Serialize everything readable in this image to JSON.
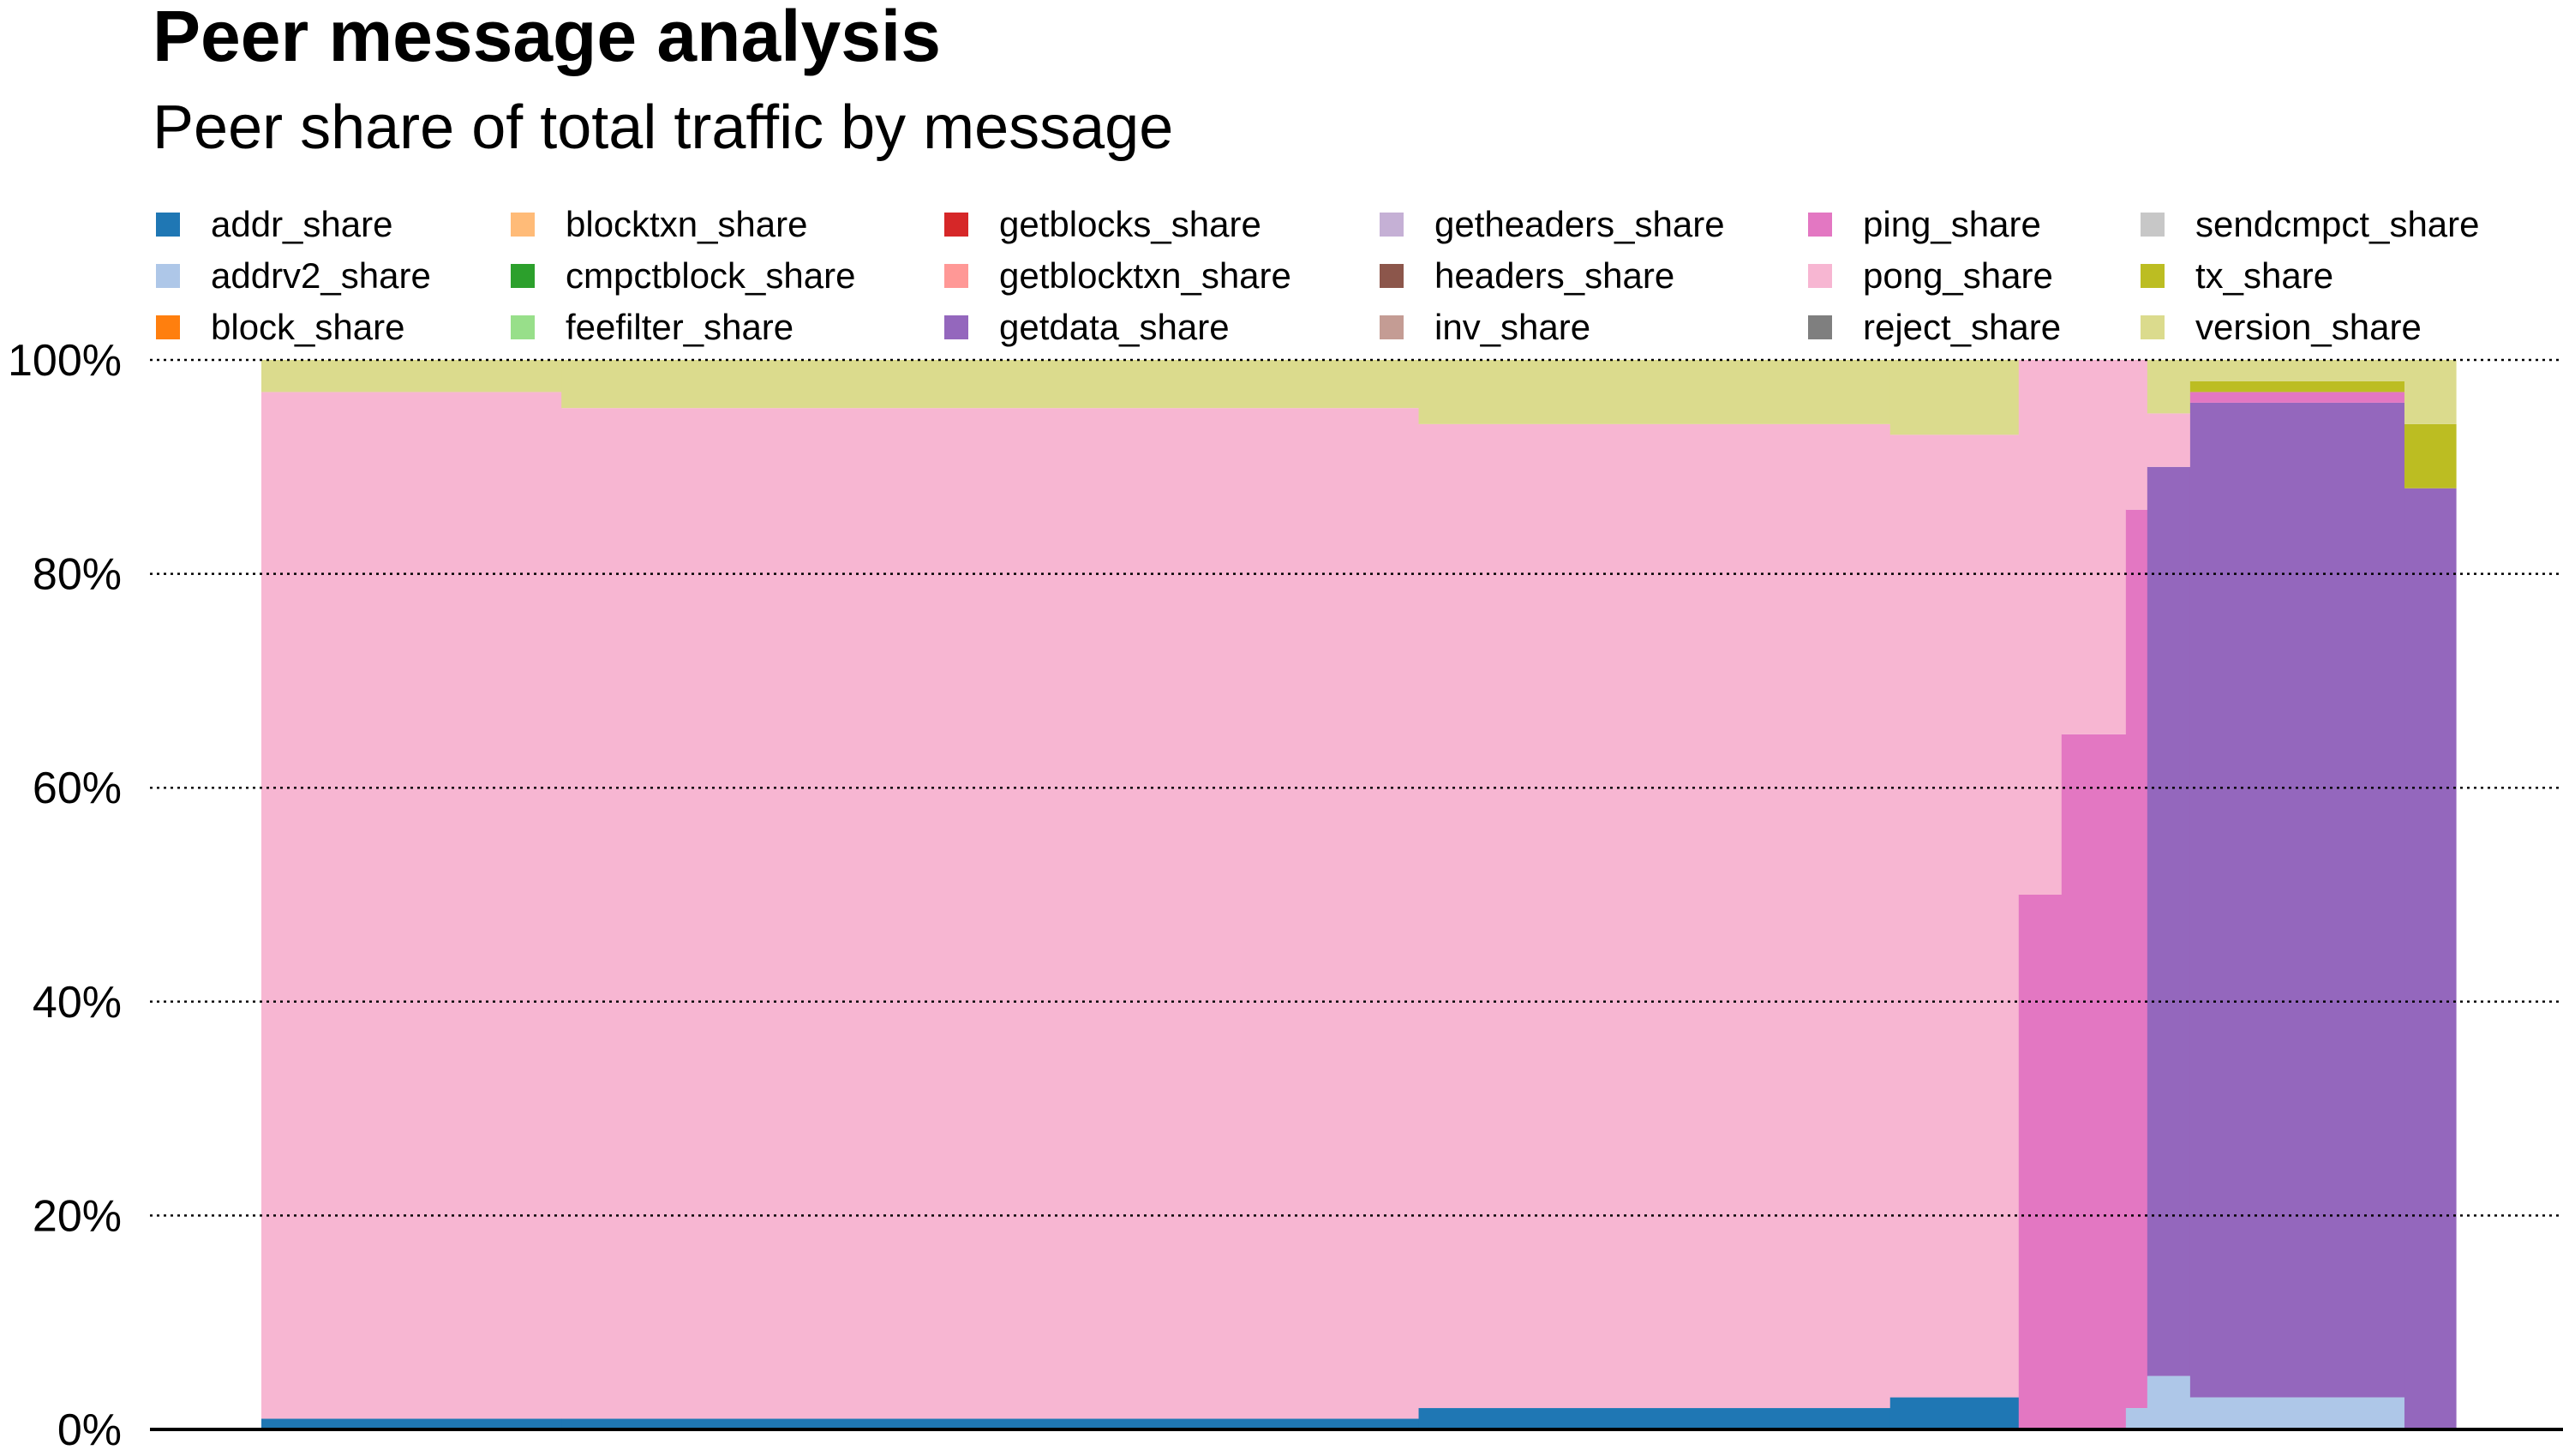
{
  "title": "Peer message analysis",
  "subtitle": "Peer share of total traffic by message",
  "chart_data": {
    "type": "area",
    "stacked": true,
    "normalized": true,
    "title": "Peer message analysis",
    "subtitle": "Peer share of total traffic by message",
    "xlabel": "",
    "ylabel": "",
    "ylim": [
      0,
      100
    ],
    "yticks": [
      0,
      20,
      40,
      60,
      80,
      100
    ],
    "ytick_labels": [
      "0%",
      "20%",
      "40%",
      "60%",
      "80%",
      "100%"
    ],
    "grid": "horizontal-dotted",
    "legend_position": "top",
    "legend": [
      {
        "name": "addr_share",
        "color": "#1f77b4"
      },
      {
        "name": "addrv2_share",
        "color": "#aec7e8"
      },
      {
        "name": "block_share",
        "color": "#ff7f0e"
      },
      {
        "name": "blocktxn_share",
        "color": "#ffbb78"
      },
      {
        "name": "cmpctblock_share",
        "color": "#2ca02c"
      },
      {
        "name": "feefilter_share",
        "color": "#98df8a"
      },
      {
        "name": "getblocks_share",
        "color": "#d62728"
      },
      {
        "name": "getblocktxn_share",
        "color": "#ff9896"
      },
      {
        "name": "getdata_share",
        "color": "#9467bd"
      },
      {
        "name": "getheaders_share",
        "color": "#c5b0d5"
      },
      {
        "name": "headers_share",
        "color": "#8c564b"
      },
      {
        "name": "inv_share",
        "color": "#c49c94"
      },
      {
        "name": "ping_share",
        "color": "#e377c2"
      },
      {
        "name": "pong_share",
        "color": "#f7b6d2"
      },
      {
        "name": "reject_share",
        "color": "#7f7f7f"
      },
      {
        "name": "sendcmpct_share",
        "color": "#c7c7c7"
      },
      {
        "name": "tx_share",
        "color": "#bcbd22"
      },
      {
        "name": "version_share",
        "color": "#dbdb8d"
      }
    ],
    "peer_segments": [
      {
        "peer_range": [
          0,
          140
        ],
        "addr_share": 1,
        "addrv2_share": 0,
        "ping_share": 0,
        "pong_share": 96,
        "getdata_share": 0,
        "tx_share": 0,
        "version_share": 3
      },
      {
        "peer_range": [
          140,
          540
        ],
        "addr_share": 1,
        "addrv2_share": 0,
        "ping_share": 0,
        "pong_share": 94.5,
        "getdata_share": 0,
        "tx_share": 0,
        "version_share": 4.5
      },
      {
        "peer_range": [
          540,
          760
        ],
        "addr_share": 2,
        "addrv2_share": 0,
        "ping_share": 0,
        "pong_share": 92,
        "getdata_share": 0,
        "tx_share": 0,
        "version_share": 6
      },
      {
        "peer_range": [
          760,
          820
        ],
        "addr_share": 3,
        "addrv2_share": 0,
        "ping_share": 0,
        "pong_share": 90,
        "getdata_share": 0,
        "tx_share": 0,
        "version_share": 7
      },
      {
        "peer_range": [
          820,
          840
        ],
        "addr_share": 0,
        "addrv2_share": 0,
        "ping_share": 50,
        "pong_share": 50,
        "getdata_share": 0,
        "tx_share": 0,
        "version_share": 0
      },
      {
        "peer_range": [
          840,
          870
        ],
        "addr_share": 0,
        "addrv2_share": 0,
        "ping_share": 65,
        "pong_share": 35,
        "getdata_share": 0,
        "tx_share": 0,
        "version_share": 0
      },
      {
        "peer_range": [
          870,
          880
        ],
        "addr_share": 0,
        "addrv2_share": 2,
        "ping_share": 84,
        "pong_share": 14,
        "getdata_share": 0,
        "tx_share": 0,
        "version_share": 0
      },
      {
        "peer_range": [
          880,
          900
        ],
        "addr_share": 0,
        "addrv2_share": 5,
        "ping_share": 0,
        "pong_share": 5,
        "getdata_share": 85,
        "tx_share": 0,
        "version_share": 5
      },
      {
        "peer_range": [
          900,
          1000
        ],
        "addr_share": 0,
        "addrv2_share": 3,
        "ping_share": 1,
        "pong_share": 0,
        "getdata_share": 93,
        "tx_share": 1,
        "version_share": 2
      },
      {
        "peer_range": [
          1000,
          1024
        ],
        "addr_share": 0,
        "addrv2_share": 0,
        "ping_share": 0,
        "pong_share": 0,
        "getdata_share": 88,
        "tx_share": 6,
        "version_share": 6
      }
    ]
  }
}
